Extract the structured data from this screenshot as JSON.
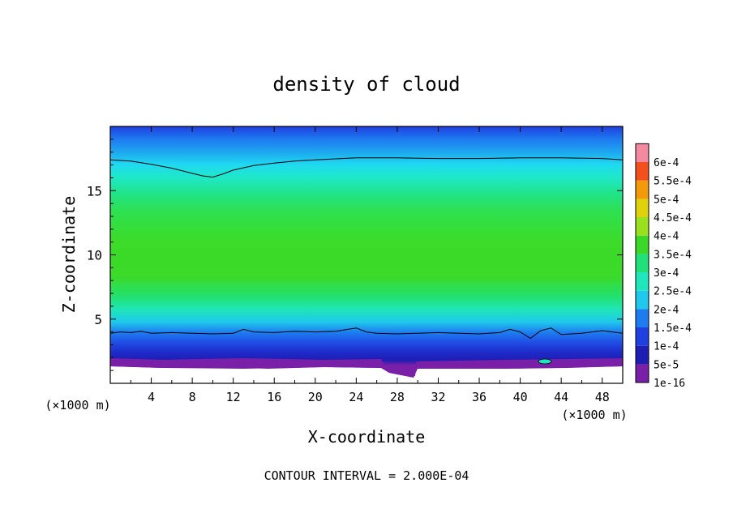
{
  "chart_data": {
    "type": "heatmap",
    "title": "density of cloud",
    "xlabel": "X-coordinate",
    "ylabel": "Z-coordinate",
    "x_unit_left": "(×1000 m)",
    "x_unit_right": "(×1000 m)",
    "xlim": [
      0,
      50
    ],
    "ylim": [
      0,
      20
    ],
    "x_ticks": [
      4,
      8,
      12,
      16,
      20,
      24,
      28,
      32,
      36,
      40,
      44,
      48
    ],
    "x_tick_labels": [
      "4",
      "8",
      "12",
      "16",
      "20",
      "24",
      "28",
      "32",
      "36",
      "40",
      "44",
      "48"
    ],
    "y_ticks": [
      5,
      10,
      15
    ],
    "y_tick_labels": [
      "5",
      "10",
      "15"
    ],
    "colorbar": {
      "labels": [
        "1e-16",
        "5e-5",
        "1e-4",
        "1.5e-4",
        "2e-4",
        "2.5e-4",
        "3e-4",
        "3.5e-4",
        "4e-4",
        "4.5e-4",
        "5e-4",
        "5.5e-4",
        "6e-4"
      ],
      "colors": [
        "#7a1fa8",
        "#1e1eb4",
        "#1f3fe0",
        "#1e7bf0",
        "#1fc8ec",
        "#1fe6bc",
        "#20e07a",
        "#3cd828",
        "#9ae01e",
        "#e0d20a",
        "#f49a0a",
        "#f4501e",
        "#f48aa0"
      ]
    },
    "contour_levels": [
      0.0002
    ],
    "contours": [
      {
        "level": 0.0002,
        "name": "upper",
        "points": [
          [
            0,
            17.4
          ],
          [
            2,
            17.3
          ],
          [
            4,
            17.05
          ],
          [
            6,
            16.75
          ],
          [
            8,
            16.35
          ],
          [
            9,
            16.15
          ],
          [
            10,
            16.05
          ],
          [
            11,
            16.3
          ],
          [
            12,
            16.6
          ],
          [
            14,
            16.95
          ],
          [
            16,
            17.15
          ],
          [
            18,
            17.3
          ],
          [
            20,
            17.4
          ],
          [
            24,
            17.55
          ],
          [
            28,
            17.55
          ],
          [
            32,
            17.5
          ],
          [
            36,
            17.5
          ],
          [
            40,
            17.55
          ],
          [
            44,
            17.55
          ],
          [
            48,
            17.5
          ],
          [
            50,
            17.4
          ]
        ]
      },
      {
        "level": 0.0002,
        "name": "lower",
        "points": [
          [
            0,
            3.9
          ],
          [
            1,
            4.0
          ],
          [
            2,
            3.95
          ],
          [
            3,
            4.05
          ],
          [
            4,
            3.9
          ],
          [
            6,
            3.95
          ],
          [
            8,
            3.9
          ],
          [
            10,
            3.85
          ],
          [
            12,
            3.9
          ],
          [
            13,
            4.2
          ],
          [
            14,
            4.0
          ],
          [
            16,
            3.95
          ],
          [
            18,
            4.05
          ],
          [
            20,
            4.0
          ],
          [
            22,
            4.05
          ],
          [
            24,
            4.3
          ],
          [
            25,
            4.0
          ],
          [
            26,
            3.9
          ],
          [
            28,
            3.85
          ],
          [
            30,
            3.9
          ],
          [
            32,
            3.95
          ],
          [
            34,
            3.9
          ],
          [
            36,
            3.85
          ],
          [
            38,
            3.95
          ],
          [
            39,
            4.2
          ],
          [
            40,
            4.0
          ],
          [
            41,
            3.5
          ],
          [
            42,
            4.1
          ],
          [
            43,
            4.3
          ],
          [
            44,
            3.8
          ],
          [
            46,
            3.9
          ],
          [
            48,
            4.1
          ],
          [
            50,
            3.9
          ]
        ]
      }
    ],
    "annotation": "CONTOUR INTERVAL = 2.000E-04"
  }
}
